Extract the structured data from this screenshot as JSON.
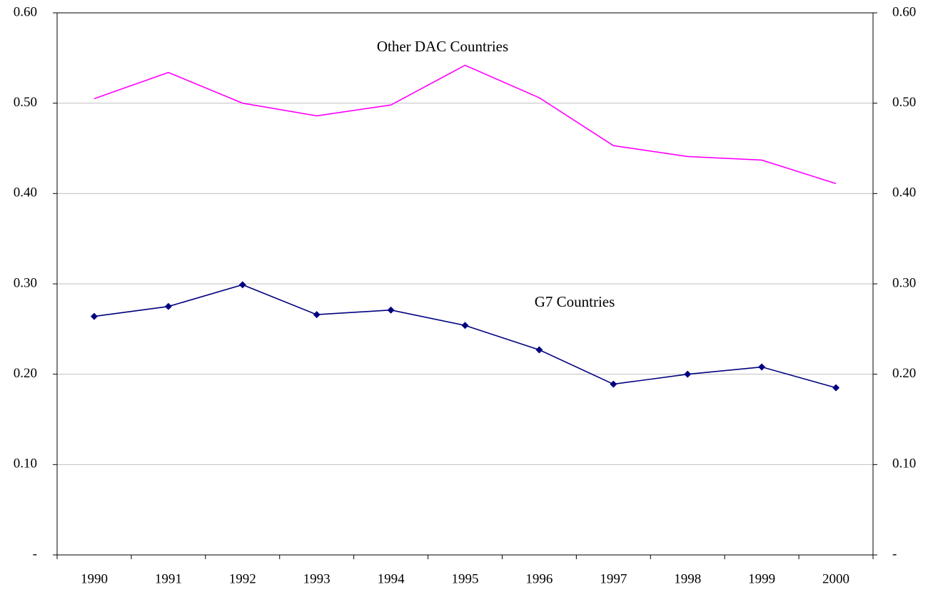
{
  "chart_data": {
    "type": "line",
    "categories": [
      "1990",
      "1991",
      "1992",
      "1993",
      "1994",
      "1995",
      "1996",
      "1997",
      "1998",
      "1999",
      "2000"
    ],
    "series": [
      {
        "name": "Other DAC Countries",
        "color": "#ff00ff",
        "marker": false,
        "values": [
          0.505,
          0.534,
          0.5,
          0.486,
          0.498,
          0.542,
          0.506,
          0.453,
          0.441,
          0.437,
          0.411
        ]
      },
      {
        "name": "G7 Countries",
        "color": "#000080",
        "marker": true,
        "values": [
          0.264,
          0.275,
          0.299,
          0.266,
          0.271,
          0.254,
          0.227,
          0.189,
          0.2,
          0.208,
          0.185
        ]
      }
    ],
    "ylim": [
      0,
      0.6
    ],
    "yticks": [
      {
        "value": 0,
        "label": "-"
      },
      {
        "value": 0.1,
        "label": "0.10"
      },
      {
        "value": 0.2,
        "label": "0.20"
      },
      {
        "value": 0.3,
        "label": "0.30"
      },
      {
        "value": 0.4,
        "label": "0.40"
      },
      {
        "value": 0.5,
        "label": "0.50"
      },
      {
        "value": 0.6,
        "label": "0.60"
      }
    ],
    "y2lim": [
      0,
      0.6
    ],
    "y2ticks": [
      {
        "value": 0,
        "label": "-"
      },
      {
        "value": 0.1,
        "label": "0.10"
      },
      {
        "value": 0.2,
        "label": "0.20"
      },
      {
        "value": 0.3,
        "label": "0.30"
      },
      {
        "value": 0.4,
        "label": "0.40"
      },
      {
        "value": 0.5,
        "label": "0.50"
      },
      {
        "value": 0.6,
        "label": "0.60"
      }
    ],
    "grid": true
  }
}
